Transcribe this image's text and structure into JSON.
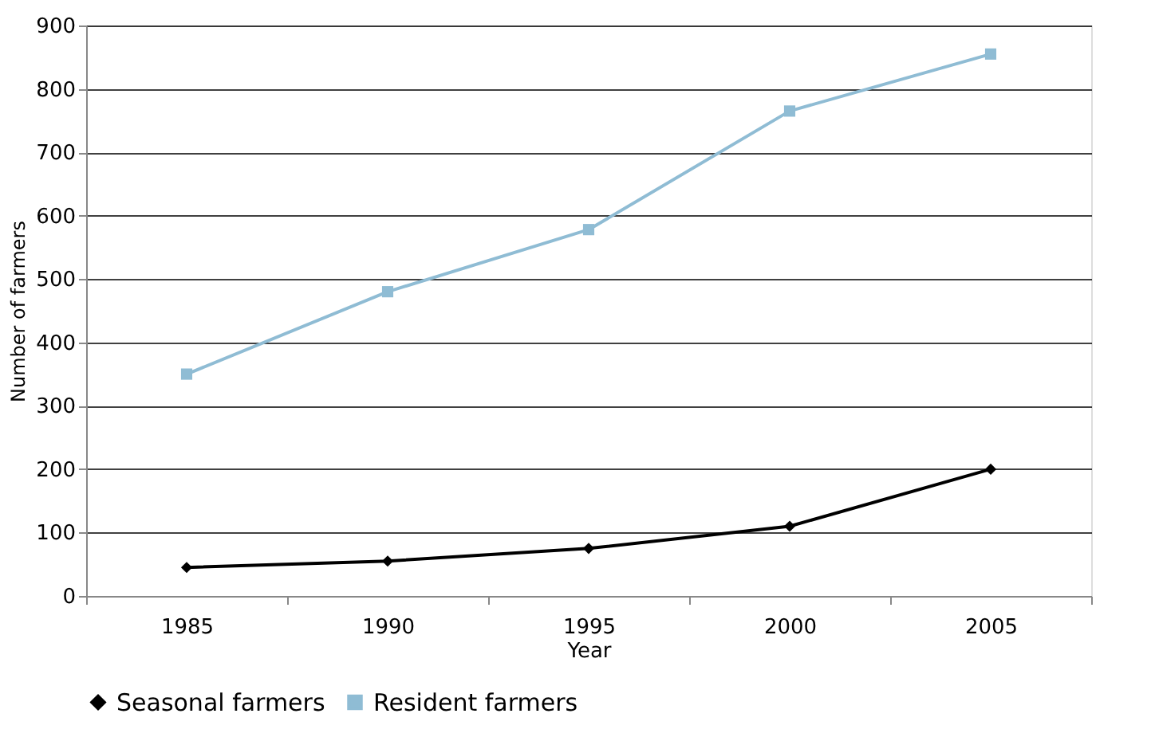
{
  "chart_data": {
    "type": "line",
    "xlabel": "Year",
    "ylabel": "Number of farmers",
    "categories": [
      "1985",
      "1990",
      "1995",
      "2000",
      "2005"
    ],
    "series": [
      {
        "name": "Seasonal farmers",
        "color": "#000000",
        "marker": "diamond",
        "values": [
          45,
          55,
          75,
          110,
          200
        ]
      },
      {
        "name": "Resident farmers",
        "color": "#8fbcd4",
        "marker": "square",
        "values": [
          350,
          480,
          578,
          765,
          855
        ]
      }
    ],
    "ylim": [
      0,
      900
    ],
    "yticks": [
      0,
      100,
      200,
      300,
      400,
      500,
      600,
      700,
      800,
      900
    ],
    "grid": "y",
    "legend": "bottom",
    "line_style": "solid"
  }
}
